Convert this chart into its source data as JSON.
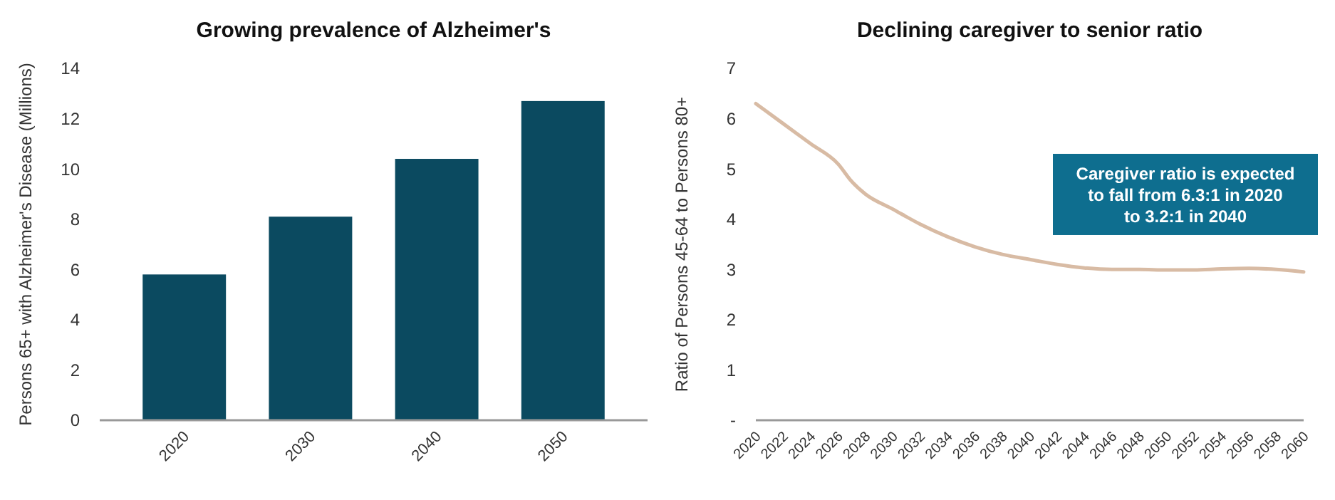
{
  "chart_data": [
    {
      "type": "bar",
      "title": "Growing prevalence of Alzheimer's",
      "ylabel": "Persons 65+ with Alzheimer's Disease (Millions)",
      "categories": [
        "2020",
        "2030",
        "2040",
        "2050"
      ],
      "values": [
        5.8,
        8.1,
        10.4,
        12.7
      ],
      "color": "#0b4a60",
      "ylim": [
        0,
        14
      ],
      "yticks": [
        0,
        2,
        4,
        6,
        8,
        10,
        12,
        14
      ],
      "grid": false
    },
    {
      "type": "line",
      "title": "Declining caregiver to senior ratio",
      "ylabel": "Ratio of Persons 45-64 to Persons 80+",
      "x": [
        2020,
        2022,
        2024,
        2026,
        2027,
        2028,
        2030,
        2032,
        2034,
        2036,
        2038,
        2040,
        2042,
        2044,
        2046,
        2048,
        2050,
        2052,
        2054,
        2056,
        2058,
        2060
      ],
      "values": [
        6.3,
        5.9,
        5.5,
        5.1,
        4.75,
        4.5,
        4.2,
        3.9,
        3.65,
        3.45,
        3.3,
        3.2,
        3.1,
        3.03,
        3.0,
        3.0,
        2.99,
        2.99,
        3.01,
        3.02,
        3.0,
        2.95
      ],
      "color": "#d8bba4",
      "xlim": [
        2020,
        2060
      ],
      "xticks": [
        2020,
        2022,
        2024,
        2026,
        2028,
        2030,
        2032,
        2034,
        2036,
        2038,
        2040,
        2042,
        2044,
        2046,
        2048,
        2050,
        2052,
        2054,
        2056,
        2058,
        2060
      ],
      "ylim": [
        0,
        7
      ],
      "yticks": [
        {
          "value": 0,
          "label": "-"
        },
        1,
        2,
        3,
        4,
        5,
        6,
        7
      ],
      "grid": false,
      "marker": "none",
      "line_style": "solid",
      "annotations": [
        "Caregiver ratio is expected to fall from 6.3:1 in 2020 to 3.2:1 in 2040"
      ]
    }
  ]
}
